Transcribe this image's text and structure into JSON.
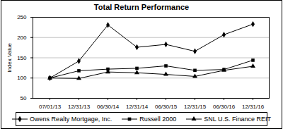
{
  "chart_data": {
    "type": "line",
    "title": "Total Return Performance",
    "y_label": "Index Value",
    "categories": [
      "07/01/13",
      "12/31/13",
      "06/30/14",
      "12/31/14",
      "06/30/15",
      "12/31/15",
      "06/30/16",
      "12/31/16"
    ],
    "series": [
      {
        "name": "Owens Realty Mortgage, Inc.",
        "color": "#000000",
        "marker": "diamond",
        "values": [
          100,
          142,
          231,
          176,
          183,
          166,
          207,
          233
        ]
      },
      {
        "name": "Russell 2000",
        "color": "#000000",
        "marker": "square",
        "values": [
          100,
          118,
          122,
          124,
          130,
          119,
          121,
          144
        ]
      },
      {
        "name": "SNL U.S. Finance REIT",
        "color": "#000000",
        "marker": "triangle",
        "values": [
          100,
          99,
          115,
          113,
          109,
          104,
          119,
          129
        ]
      }
    ],
    "ylim": [
      50,
      250
    ],
    "yticks": [
      50,
      100,
      150,
      200,
      250
    ],
    "grid": true,
    "legend": "bottom"
  }
}
